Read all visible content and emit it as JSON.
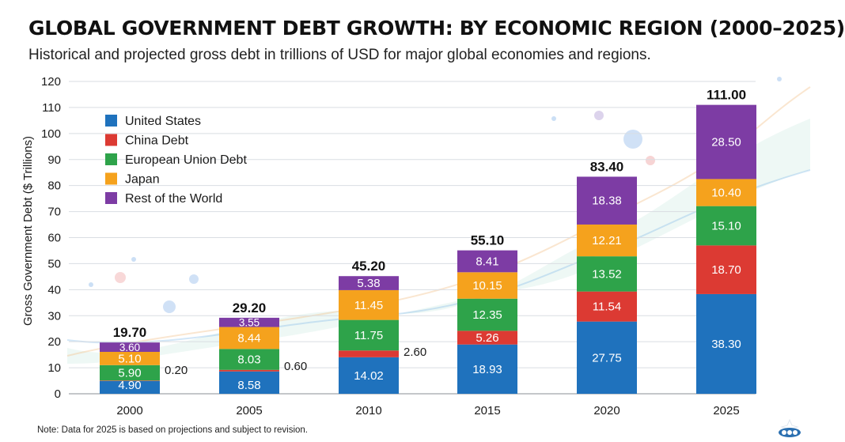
{
  "title": "GLOBAL GOVERNMENT DEBT GROWTH: BY ECONOMIC REGION (2000–2025)",
  "subtitle": "Historical and projected gross debt in trillions of USD for major global economies and regions.",
  "footnote": "Note: Data for 2025 is based on projections and subject to revision.",
  "colors": {
    "United States": "#1f72bd",
    "China Debt": "#dc3a33",
    "European Union Debt": "#2ea34a",
    "Japan": "#f5a21d",
    "Rest of the World": "#7d3ca4"
  },
  "chart_data": {
    "type": "bar",
    "stacked": true,
    "categories": [
      "2000",
      "2005",
      "2010",
      "2015",
      "2020",
      "2025"
    ],
    "series": [
      {
        "name": "United States",
        "values": [
          4.9,
          8.58,
          14.02,
          18.93,
          27.75,
          38.3
        ],
        "labels": [
          "4.90",
          "8.58",
          "14.02",
          "18.93",
          "27.75",
          "38.30"
        ]
      },
      {
        "name": "China Debt",
        "values": [
          0.2,
          0.6,
          2.6,
          5.26,
          11.54,
          18.7
        ],
        "labels": [
          "0.20",
          "0.60",
          "2.60",
          "5.26",
          "11.54",
          "18.70"
        ]
      },
      {
        "name": "European Union Debt",
        "values": [
          5.9,
          8.03,
          11.75,
          12.35,
          13.52,
          15.1
        ],
        "labels": [
          "5.90",
          "8.03",
          "11.75",
          "12.35",
          "13.52",
          "15.10"
        ]
      },
      {
        "name": "Japan",
        "values": [
          5.1,
          8.44,
          11.45,
          10.15,
          12.21,
          10.4
        ],
        "labels": [
          "5.10",
          "8.44",
          "11.45",
          "10.15",
          "12.21",
          "10.40"
        ]
      },
      {
        "name": "Rest of the World",
        "values": [
          3.6,
          3.55,
          5.38,
          8.41,
          18.38,
          28.5
        ],
        "labels": [
          "3.60",
          "3.55",
          "5.38",
          "8.41",
          "18.38",
          "28.50"
        ]
      }
    ],
    "totals": [
      "19.70",
      "29.20",
      "45.20",
      "55.10",
      "83.40",
      "111.00"
    ],
    "ylabel": "Gross Government Debt ($ Trillions)",
    "xlabel": "",
    "ylim": [
      0,
      120
    ],
    "yticks": [
      "0",
      "10",
      "20",
      "30",
      "40",
      "50",
      "60",
      "70",
      "80",
      "90",
      "100",
      "110",
      "120"
    ],
    "grid": true,
    "legend_position": "top-left"
  }
}
